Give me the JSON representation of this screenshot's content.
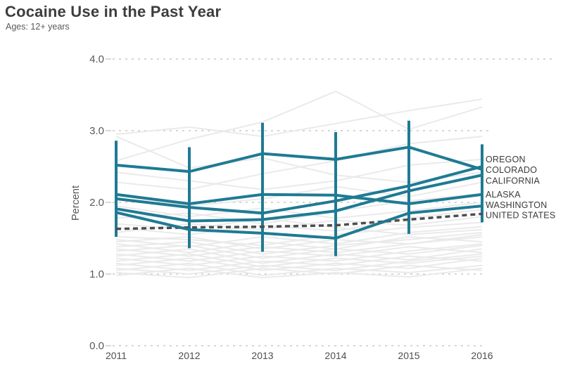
{
  "header": {
    "title": "Cocaine Use in the Past Year",
    "subtitle": "Ages: 12+ years"
  },
  "chart_data": {
    "type": "line",
    "title": "Cocaine Use in the Past Year",
    "subtitle": "Ages: 12+ years",
    "ylabel": "Percent",
    "xlabel": "",
    "ylim": [
      0.0,
      4.0
    ],
    "yticks": [
      4.0,
      3.0,
      2.0,
      1.0,
      0.0
    ],
    "ytick_labels": [
      "4.0",
      "3.0",
      "2.0",
      "1.0",
      "0.0"
    ],
    "x": [
      2011,
      2012,
      2013,
      2014,
      2015,
      2016
    ],
    "xtick_labels": [
      "2011",
      "2012",
      "2013",
      "2014",
      "2015",
      "2016"
    ],
    "grid": "horizontal-dashed",
    "legend_position": "right-of-line-endpoints",
    "colors": {
      "highlight": "#1f7a93",
      "us_line": "#4d4d4d",
      "background_lines": "#e9e9e9",
      "grid": "#c8c8c8",
      "tick_text": "#595959",
      "title_text": "#3d3d3d"
    },
    "series": [
      {
        "name": "OREGON",
        "values": [
          2.05,
          1.93,
          1.85,
          2.02,
          2.23,
          2.5
        ],
        "style": "solid",
        "label_at": 2.6
      },
      {
        "name": "COLORADO",
        "values": [
          2.52,
          2.43,
          2.68,
          2.6,
          2.77,
          2.46
        ],
        "style": "solid",
        "label_at": 2.45
      },
      {
        "name": "CALIFORNIA",
        "values": [
          1.91,
          1.74,
          1.76,
          1.88,
          2.16,
          2.38
        ],
        "style": "solid",
        "label_at": 2.3
      },
      {
        "name": "ALASKA",
        "values": [
          2.11,
          1.98,
          2.11,
          2.1,
          1.98,
          2.11
        ],
        "style": "solid",
        "label_at": 2.11
      },
      {
        "name": "WASHINGTON",
        "values": [
          1.86,
          1.62,
          1.57,
          1.5,
          1.85,
          1.95
        ],
        "style": "solid",
        "label_at": 1.96
      },
      {
        "name": "UNITED STATES",
        "values": [
          1.63,
          1.65,
          1.66,
          1.68,
          1.76,
          1.84
        ],
        "style": "dashed",
        "label_at": 1.82
      }
    ],
    "year_range_bars": [
      {
        "year": 2011,
        "lo": 1.52,
        "hi": 2.86
      },
      {
        "year": 2012,
        "lo": 1.36,
        "hi": 2.77
      },
      {
        "year": 2013,
        "lo": 1.31,
        "hi": 3.11
      },
      {
        "year": 2014,
        "lo": 1.25,
        "hi": 2.98
      },
      {
        "year": 2015,
        "lo": 1.56,
        "hi": 3.14
      },
      {
        "year": 2016,
        "lo": 1.72,
        "hi": 2.81
      }
    ],
    "background_series": [
      [
        2.95,
        3.05,
        2.92,
        3.1,
        3.28,
        3.44
      ],
      [
        2.58,
        2.88,
        3.12,
        3.55,
        3.02,
        3.33
      ],
      [
        2.92,
        2.48,
        2.62,
        2.38,
        2.28,
        2.42
      ],
      [
        2.28,
        2.18,
        2.4,
        2.58,
        2.82,
        2.92
      ],
      [
        2.42,
        2.3,
        2.18,
        2.3,
        2.52,
        2.6
      ],
      [
        2.1,
        1.95,
        2.05,
        2.22,
        2.08,
        2.28
      ],
      [
        1.78,
        1.85,
        1.7,
        1.88,
        2.02,
        2.12
      ],
      [
        1.95,
        1.8,
        1.92,
        1.78,
        1.88,
        2.0
      ],
      [
        1.65,
        1.55,
        1.68,
        1.6,
        1.78,
        1.9
      ],
      [
        1.58,
        1.7,
        1.62,
        1.75,
        1.68,
        1.8
      ],
      [
        1.7,
        1.62,
        1.78,
        1.65,
        1.55,
        1.62
      ],
      [
        1.52,
        1.48,
        1.4,
        1.55,
        1.65,
        1.72
      ],
      [
        1.48,
        1.38,
        1.52,
        1.42,
        1.58,
        1.66
      ],
      [
        1.45,
        1.52,
        1.35,
        1.48,
        1.42,
        1.55
      ],
      [
        1.42,
        1.3,
        1.45,
        1.35,
        1.52,
        1.45
      ],
      [
        1.38,
        1.45,
        1.28,
        1.4,
        1.48,
        1.58
      ],
      [
        1.35,
        1.25,
        1.38,
        1.3,
        1.42,
        1.52
      ],
      [
        1.32,
        1.4,
        1.22,
        1.35,
        1.28,
        1.4
      ],
      [
        1.28,
        1.18,
        1.32,
        1.25,
        1.38,
        1.3
      ],
      [
        1.25,
        1.35,
        1.15,
        1.28,
        1.2,
        1.35
      ],
      [
        1.22,
        1.12,
        1.25,
        1.18,
        1.32,
        1.42
      ],
      [
        1.18,
        1.28,
        1.1,
        1.22,
        1.15,
        1.25
      ],
      [
        1.15,
        1.05,
        1.18,
        1.12,
        1.25,
        1.18
      ],
      [
        1.12,
        1.22,
        1.05,
        1.15,
        1.08,
        1.22
      ],
      [
        1.08,
        1.0,
        1.12,
        1.05,
        1.18,
        1.28
      ],
      [
        1.05,
        1.15,
        0.98,
        1.08,
        1.02,
        1.12
      ],
      [
        1.02,
        0.95,
        1.08,
        1.0,
        1.12,
        1.05
      ],
      [
        0.98,
        1.08,
        0.95,
        1.02,
        0.96,
        1.08
      ]
    ]
  }
}
